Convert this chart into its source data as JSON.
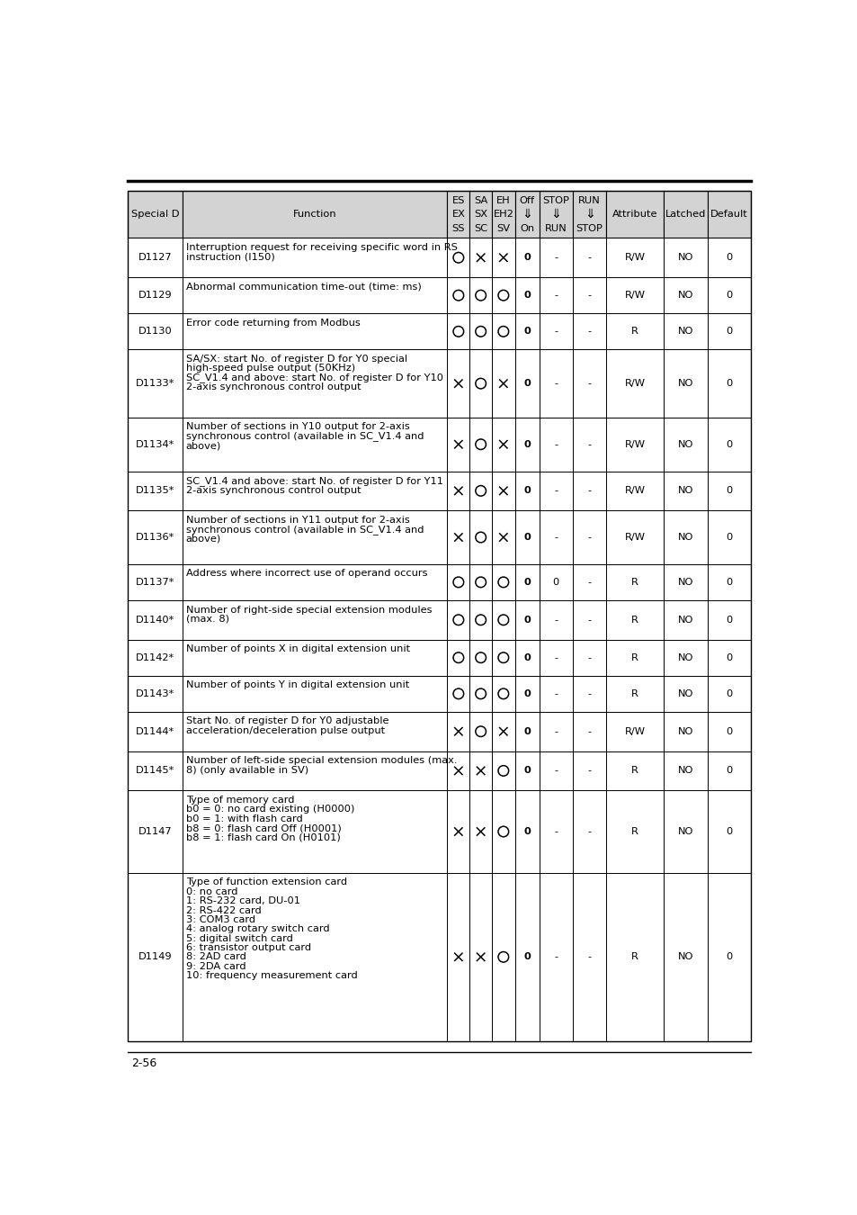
{
  "page_label": "2-56",
  "header": {
    "col0": "Special D",
    "col1": "Function",
    "col2_line1": "ES",
    "col2_line2": "EX",
    "col2_line3": "SS",
    "col3_line1": "SA",
    "col3_line2": "SX",
    "col3_line3": "SC",
    "col4_line1": "EH",
    "col4_line2": "EH2",
    "col4_line3": "SV",
    "col5_line1": "Off",
    "col5_line2": "⇓",
    "col5_line3": "On",
    "col6_line1": "STOP",
    "col6_line2": "⇓",
    "col6_line3": "RUN",
    "col7_line1": "RUN",
    "col7_line2": "⇓",
    "col7_line3": "STOP",
    "col8": "Attribute",
    "col9": "Latched",
    "col10": "Default"
  },
  "rows": [
    {
      "id": "D1127",
      "function": "Interruption request for receiving specific word in RS\ninstruction (I150)",
      "es": "O",
      "sa": "X",
      "eh": "X",
      "off": "0",
      "stop": "-",
      "run": "-",
      "attr": "R/W",
      "latched": "NO",
      "default": "0",
      "n_lines": 2
    },
    {
      "id": "D1129",
      "function": "Abnormal communication time-out (time: ms)",
      "es": "O",
      "sa": "O",
      "eh": "O",
      "off": "0",
      "stop": "-",
      "run": "-",
      "attr": "R/W",
      "latched": "NO",
      "default": "0",
      "n_lines": 1
    },
    {
      "id": "D1130",
      "function": "Error code returning from Modbus",
      "es": "O",
      "sa": "O",
      "eh": "O",
      "off": "0",
      "stop": "-",
      "run": "-",
      "attr": "R",
      "latched": "NO",
      "default": "0",
      "n_lines": 1
    },
    {
      "id": "D1133*",
      "function": "SA/SX: start No. of register D for Y0 special\nhigh-speed pulse output (50KHz)\nSC_V1.4 and above: start No. of register D for Y10\n2-axis synchronous control output",
      "es": "X",
      "sa": "O",
      "eh": "X",
      "off": "0",
      "stop": "-",
      "run": "-",
      "attr": "R/W",
      "latched": "NO",
      "default": "0",
      "n_lines": 4
    },
    {
      "id": "D1134*",
      "function": "Number of sections in Y10 output for 2-axis\nsynchronous control (available in SC_V1.4 and\nabove)",
      "es": "X",
      "sa": "O",
      "eh": "X",
      "off": "0",
      "stop": "-",
      "run": "-",
      "attr": "R/W",
      "latched": "NO",
      "default": "0",
      "n_lines": 3
    },
    {
      "id": "D1135*",
      "function": "SC_V1.4 and above: start No. of register D for Y11\n2-axis synchronous control output",
      "es": "X",
      "sa": "O",
      "eh": "X",
      "off": "0",
      "stop": "-",
      "run": "-",
      "attr": "R/W",
      "latched": "NO",
      "default": "0",
      "n_lines": 2
    },
    {
      "id": "D1136*",
      "function": "Number of sections in Y11 output for 2-axis\nsynchronous control (available in SC_V1.4 and\nabove)",
      "es": "X",
      "sa": "O",
      "eh": "X",
      "off": "0",
      "stop": "-",
      "run": "-",
      "attr": "R/W",
      "latched": "NO",
      "default": "0",
      "n_lines": 3
    },
    {
      "id": "D1137*",
      "function": "Address where incorrect use of operand occurs",
      "es": "O",
      "sa": "O",
      "eh": "O",
      "off": "0",
      "stop": "0",
      "run": "-",
      "attr": "R",
      "latched": "NO",
      "default": "0",
      "n_lines": 1
    },
    {
      "id": "D1140*",
      "function": "Number of right-side special extension modules\n(max. 8)",
      "es": "O",
      "sa": "O",
      "eh": "O",
      "off": "0",
      "stop": "-",
      "run": "-",
      "attr": "R",
      "latched": "NO",
      "default": "0",
      "n_lines": 2
    },
    {
      "id": "D1142*",
      "function": "Number of points X in digital extension unit",
      "es": "O",
      "sa": "O",
      "eh": "O",
      "off": "0",
      "stop": "-",
      "run": "-",
      "attr": "R",
      "latched": "NO",
      "default": "0",
      "n_lines": 1
    },
    {
      "id": "D1143*",
      "function": "Number of points Y in digital extension unit",
      "es": "O",
      "sa": "O",
      "eh": "O",
      "off": "0",
      "stop": "-",
      "run": "-",
      "attr": "R",
      "latched": "NO",
      "default": "0",
      "n_lines": 1
    },
    {
      "id": "D1144*",
      "function": "Start No. of register D for Y0 adjustable\nacceleration/deceleration pulse output",
      "es": "X",
      "sa": "O",
      "eh": "X",
      "off": "0",
      "stop": "-",
      "run": "-",
      "attr": "R/W",
      "latched": "NO",
      "default": "0",
      "n_lines": 2
    },
    {
      "id": "D1145*",
      "function": "Number of left-side special extension modules (max.\n8) (only available in SV)",
      "es": "X",
      "sa": "X",
      "eh": "O",
      "off": "0",
      "stop": "-",
      "run": "-",
      "attr": "R",
      "latched": "NO",
      "default": "0",
      "n_lines": 2
    },
    {
      "id": "D1147",
      "function": "Type of memory card\nb0 = 0: no card existing (H0000)\nb0 = 1: with flash card\nb8 = 0: flash card Off (H0001)\nb8 = 1: flash card On (H0101)",
      "es": "X",
      "sa": "X",
      "eh": "O",
      "off": "0",
      "stop": "-",
      "run": "-",
      "attr": "R",
      "latched": "NO",
      "default": "0",
      "n_lines": 5
    },
    {
      "id": "D1149",
      "function": "Type of function extension card\n0: no card\n1: RS-232 card, DU-01\n2: RS-422 card\n3: COM3 card\n4: analog rotary switch card\n5: digital switch card\n6: transistor output card\n8: 2AD card\n9: 2DA card\n10: frequency measurement card",
      "es": "X",
      "sa": "X",
      "eh": "O",
      "off": "0",
      "stop": "-",
      "run": "-",
      "attr": "R",
      "latched": "NO",
      "default": "0",
      "n_lines": 11
    }
  ]
}
